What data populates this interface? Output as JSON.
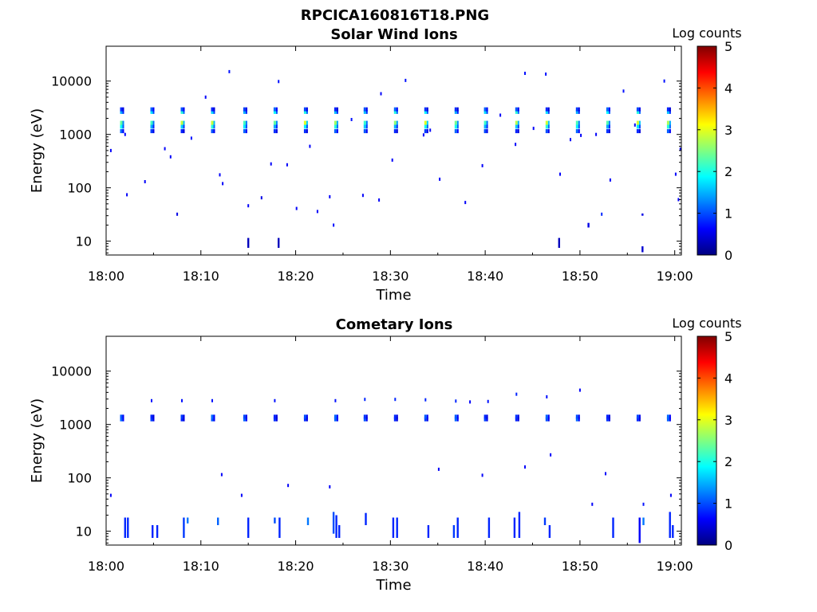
{
  "figure_title": "RPCICA160816T18.PNG",
  "colors": {
    "background": "#ffffff",
    "axis": "#000000",
    "colormap": [
      "#000080",
      "#0000ff",
      "#0080ff",
      "#00ffff",
      "#80ff80",
      "#ffff00",
      "#ff8000",
      "#ff0000",
      "#800000"
    ]
  },
  "chart_data": [
    {
      "type": "heatmap",
      "title": "Solar Wind Ions",
      "xlabel": "Time",
      "ylabel": "Energy (eV)",
      "x_ticks": [
        "18:00",
        "18:10",
        "18:20",
        "18:30",
        "18:40",
        "18:50",
        "19:00"
      ],
      "xlim_minutes": [
        0,
        60.7
      ],
      "y_scale": "log",
      "y_ticks": [
        "10",
        "100",
        "1000",
        "10000"
      ],
      "ylim": [
        5.5,
        45000
      ],
      "colorbar": {
        "label": "Log counts",
        "ticks": [
          "0",
          "1",
          "2",
          "3",
          "4",
          "5"
        ],
        "range": [
          0,
          5
        ]
      },
      "burst_times_min": [
        1.6,
        4.8,
        8.0,
        11.2,
        14.6,
        17.8,
        21.0,
        24.2,
        27.3,
        30.5,
        33.7,
        36.9,
        40.0,
        43.3,
        46.5,
        49.7,
        52.9,
        56.1,
        59.3
      ],
      "burst_energies_ev": [
        1150,
        1400,
        1650,
        2650,
        2950
      ],
      "burst_peak_log_counts": 3.0,
      "scattered_points": [
        [
          0.5,
          500,
          0.6
        ],
        [
          2.2,
          74,
          0.6
        ],
        [
          4.1,
          130,
          0.6
        ],
        [
          6.2,
          540,
          0.6
        ],
        [
          7.5,
          32,
          0.5
        ],
        [
          9.0,
          850,
          0.7
        ],
        [
          10.5,
          5000,
          0.6
        ],
        [
          12.3,
          120,
          0.6
        ],
        [
          13.0,
          15000,
          0.7
        ],
        [
          15.0,
          46,
          0.6
        ],
        [
          16.4,
          65,
          0.5
        ],
        [
          17.4,
          280,
          0.6
        ],
        [
          18.2,
          9800,
          0.7
        ],
        [
          19.1,
          270,
          0.6
        ],
        [
          20.1,
          41,
          0.6
        ],
        [
          21.5,
          600,
          0.6
        ],
        [
          22.3,
          36,
          0.6
        ],
        [
          24.0,
          20,
          0.7
        ],
        [
          25.9,
          1900,
          0.7
        ],
        [
          27.1,
          72,
          0.6
        ],
        [
          29.0,
          5800,
          0.6
        ],
        [
          30.2,
          330,
          0.6
        ],
        [
          31.6,
          10300,
          0.7
        ],
        [
          33.5,
          980,
          0.6
        ],
        [
          35.2,
          145,
          0.6
        ],
        [
          37.9,
          53,
          0.6
        ],
        [
          39.7,
          260,
          0.6
        ],
        [
          41.6,
          2300,
          0.6
        ],
        [
          43.2,
          650,
          0.6
        ],
        [
          45.1,
          1300,
          0.6
        ],
        [
          46.4,
          13500,
          0.7
        ],
        [
          47.9,
          180,
          0.6
        ],
        [
          49.0,
          800,
          0.6
        ],
        [
          50.1,
          960,
          0.6
        ],
        [
          51.7,
          1000,
          0.6
        ],
        [
          53.2,
          140,
          0.6
        ],
        [
          54.6,
          6500,
          0.7
        ],
        [
          55.8,
          1500,
          0.6
        ],
        [
          58.9,
          10000,
          0.7
        ],
        [
          60.1,
          180,
          0.6
        ],
        [
          60.4,
          60,
          0.6
        ],
        [
          60.6,
          530,
          0.6
        ],
        [
          2.0,
          1000,
          0.6
        ],
        [
          6.8,
          380,
          0.6
        ],
        [
          12.0,
          175,
          0.6
        ],
        [
          23.6,
          68,
          0.6
        ],
        [
          28.8,
          59,
          0.6
        ],
        [
          34.2,
          1200,
          0.6
        ],
        [
          44.2,
          14000,
          0.7
        ],
        [
          52.3,
          32,
          0.8
        ]
      ],
      "vertical_streaks": [
        {
          "x": 15.0,
          "e_min": 7.5,
          "e_max": 11.5,
          "level": 0.3
        },
        {
          "x": 18.2,
          "e_min": 7.5,
          "e_max": 11.5,
          "level": 0.3
        },
        {
          "x": 47.8,
          "e_min": 7.5,
          "e_max": 11.5,
          "level": 0.3
        },
        {
          "x": 50.9,
          "e_min": 18,
          "e_max": 22,
          "level": 0.5
        },
        {
          "x": 56.6,
          "e_min": 6.2,
          "e_max": 8,
          "level": 0.4
        },
        {
          "x": 56.6,
          "e_min": 30,
          "e_max": 33,
          "level": 0.5
        }
      ]
    },
    {
      "type": "heatmap",
      "title": "Cometary Ions",
      "xlabel": "Time",
      "ylabel": "Energy (eV)",
      "x_ticks": [
        "18:00",
        "18:10",
        "18:20",
        "18:30",
        "18:40",
        "18:50",
        "19:00"
      ],
      "xlim_minutes": [
        0,
        60.7
      ],
      "y_scale": "log",
      "y_ticks": [
        "10",
        "100",
        "1000",
        "10000"
      ],
      "ylim": [
        5.5,
        45000
      ],
      "colorbar": {
        "label": "Log counts",
        "ticks": [
          "0",
          "1",
          "2",
          "3",
          "4",
          "5"
        ],
        "range": [
          0,
          5
        ]
      },
      "burst_times_min": [
        1.6,
        4.8,
        8.0,
        11.2,
        14.6,
        17.8,
        21.0,
        24.2,
        27.3,
        30.5,
        33.7,
        36.9,
        40.0,
        43.3,
        46.5,
        49.7,
        52.9,
        56.1,
        59.3
      ],
      "burst_energies_ev": [
        1250,
        1400
      ],
      "burst_peak_log_counts": 1.6,
      "scattered_points": [
        [
          0.5,
          47,
          0.6
        ],
        [
          4.8,
          2800,
          0.7
        ],
        [
          8.0,
          2800,
          0.7
        ],
        [
          11.2,
          2800,
          0.7
        ],
        [
          12.2,
          115,
          0.6
        ],
        [
          14.3,
          47,
          0.6
        ],
        [
          17.8,
          2800,
          0.7
        ],
        [
          19.2,
          72,
          0.6
        ],
        [
          23.6,
          68,
          0.6
        ],
        [
          24.2,
          2800,
          0.7
        ],
        [
          27.3,
          2950,
          0.8
        ],
        [
          30.5,
          2950,
          0.8
        ],
        [
          33.7,
          2900,
          0.8
        ],
        [
          35.1,
          145,
          0.6
        ],
        [
          36.9,
          2750,
          0.8
        ],
        [
          38.4,
          2650,
          0.6
        ],
        [
          39.7,
          112,
          0.6
        ],
        [
          40.3,
          2700,
          0.7
        ],
        [
          43.3,
          3700,
          0.8
        ],
        [
          44.2,
          160,
          0.6
        ],
        [
          46.5,
          3300,
          0.7
        ],
        [
          46.9,
          270,
          0.6
        ],
        [
          50.0,
          4400,
          0.6
        ],
        [
          51.3,
          32,
          0.6
        ],
        [
          52.7,
          120,
          0.6
        ],
        [
          56.7,
          32,
          0.7
        ],
        [
          59.6,
          47,
          0.6
        ]
      ],
      "vertical_streaks": [
        {
          "x": 2.0,
          "e_min": 7.5,
          "e_max": 18,
          "level": 0.8
        },
        {
          "x": 2.3,
          "e_min": 7.5,
          "e_max": 18,
          "level": 0.8
        },
        {
          "x": 4.9,
          "e_min": 7.5,
          "e_max": 13,
          "level": 0.8
        },
        {
          "x": 5.4,
          "e_min": 7.5,
          "e_max": 13,
          "level": 0.8
        },
        {
          "x": 8.2,
          "e_min": 7.5,
          "e_max": 18,
          "level": 0.9
        },
        {
          "x": 8.6,
          "e_min": 14,
          "e_max": 18,
          "level": 1.2
        },
        {
          "x": 11.8,
          "e_min": 13,
          "e_max": 18,
          "level": 1.1
        },
        {
          "x": 15.0,
          "e_min": 7.5,
          "e_max": 18,
          "level": 0.8
        },
        {
          "x": 17.8,
          "e_min": 14,
          "e_max": 18,
          "level": 1.0
        },
        {
          "x": 18.3,
          "e_min": 7.5,
          "e_max": 18,
          "level": 0.8
        },
        {
          "x": 21.3,
          "e_min": 13,
          "e_max": 18,
          "level": 1.2
        },
        {
          "x": 24.0,
          "e_min": 9,
          "e_max": 23,
          "level": 1.0
        },
        {
          "x": 24.3,
          "e_min": 7.5,
          "e_max": 20,
          "level": 0.8
        },
        {
          "x": 24.6,
          "e_min": 7.5,
          "e_max": 13,
          "level": 0.8
        },
        {
          "x": 27.4,
          "e_min": 13,
          "e_max": 22,
          "level": 0.8
        },
        {
          "x": 30.3,
          "e_min": 7.5,
          "e_max": 18,
          "level": 0.8
        },
        {
          "x": 30.7,
          "e_min": 7.5,
          "e_max": 18,
          "level": 0.8
        },
        {
          "x": 34.0,
          "e_min": 7.5,
          "e_max": 13,
          "level": 0.8
        },
        {
          "x": 36.7,
          "e_min": 7.5,
          "e_max": 13,
          "level": 0.9
        },
        {
          "x": 37.1,
          "e_min": 7.5,
          "e_max": 18,
          "level": 0.8
        },
        {
          "x": 40.4,
          "e_min": 7.5,
          "e_max": 18,
          "level": 0.8
        },
        {
          "x": 43.1,
          "e_min": 7.5,
          "e_max": 18,
          "level": 0.8
        },
        {
          "x": 43.6,
          "e_min": 7.5,
          "e_max": 23,
          "level": 0.8
        },
        {
          "x": 46.3,
          "e_min": 13,
          "e_max": 18,
          "level": 0.9
        },
        {
          "x": 46.8,
          "e_min": 7.5,
          "e_max": 13,
          "level": 0.8
        },
        {
          "x": 53.5,
          "e_min": 7.5,
          "e_max": 18,
          "level": 0.8
        },
        {
          "x": 56.3,
          "e_min": 6.0,
          "e_max": 18,
          "level": 0.6
        },
        {
          "x": 56.7,
          "e_min": 13,
          "e_max": 18,
          "level": 1.2
        },
        {
          "x": 59.5,
          "e_min": 7.5,
          "e_max": 23,
          "level": 0.8
        },
        {
          "x": 59.8,
          "e_min": 7.5,
          "e_max": 13,
          "level": 0.8
        }
      ]
    }
  ]
}
